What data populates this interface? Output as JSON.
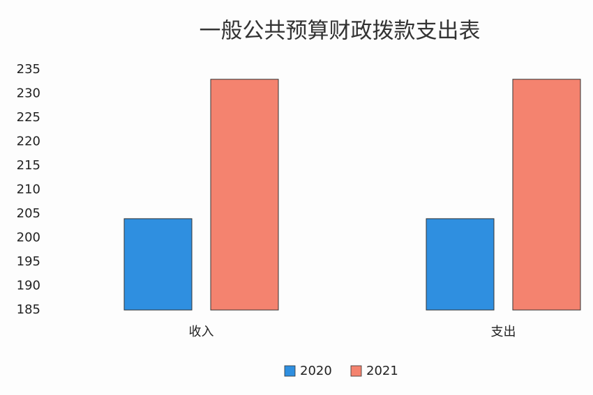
{
  "chart_data": {
    "type": "bar",
    "title": "一般公共预算财政拨款支出表",
    "categories": [
      "收入",
      "支出"
    ],
    "series": [
      {
        "name": "2020",
        "color": "#2f8fe0",
        "values": [
          204,
          204
        ]
      },
      {
        "name": "2021",
        "color": "#f4836f",
        "values": [
          233,
          233
        ]
      }
    ],
    "ylim": [
      185,
      235
    ],
    "yticks": [
      185,
      190,
      195,
      200,
      205,
      210,
      215,
      220,
      225,
      230,
      235
    ],
    "grid": false,
    "legend": "bottom"
  }
}
